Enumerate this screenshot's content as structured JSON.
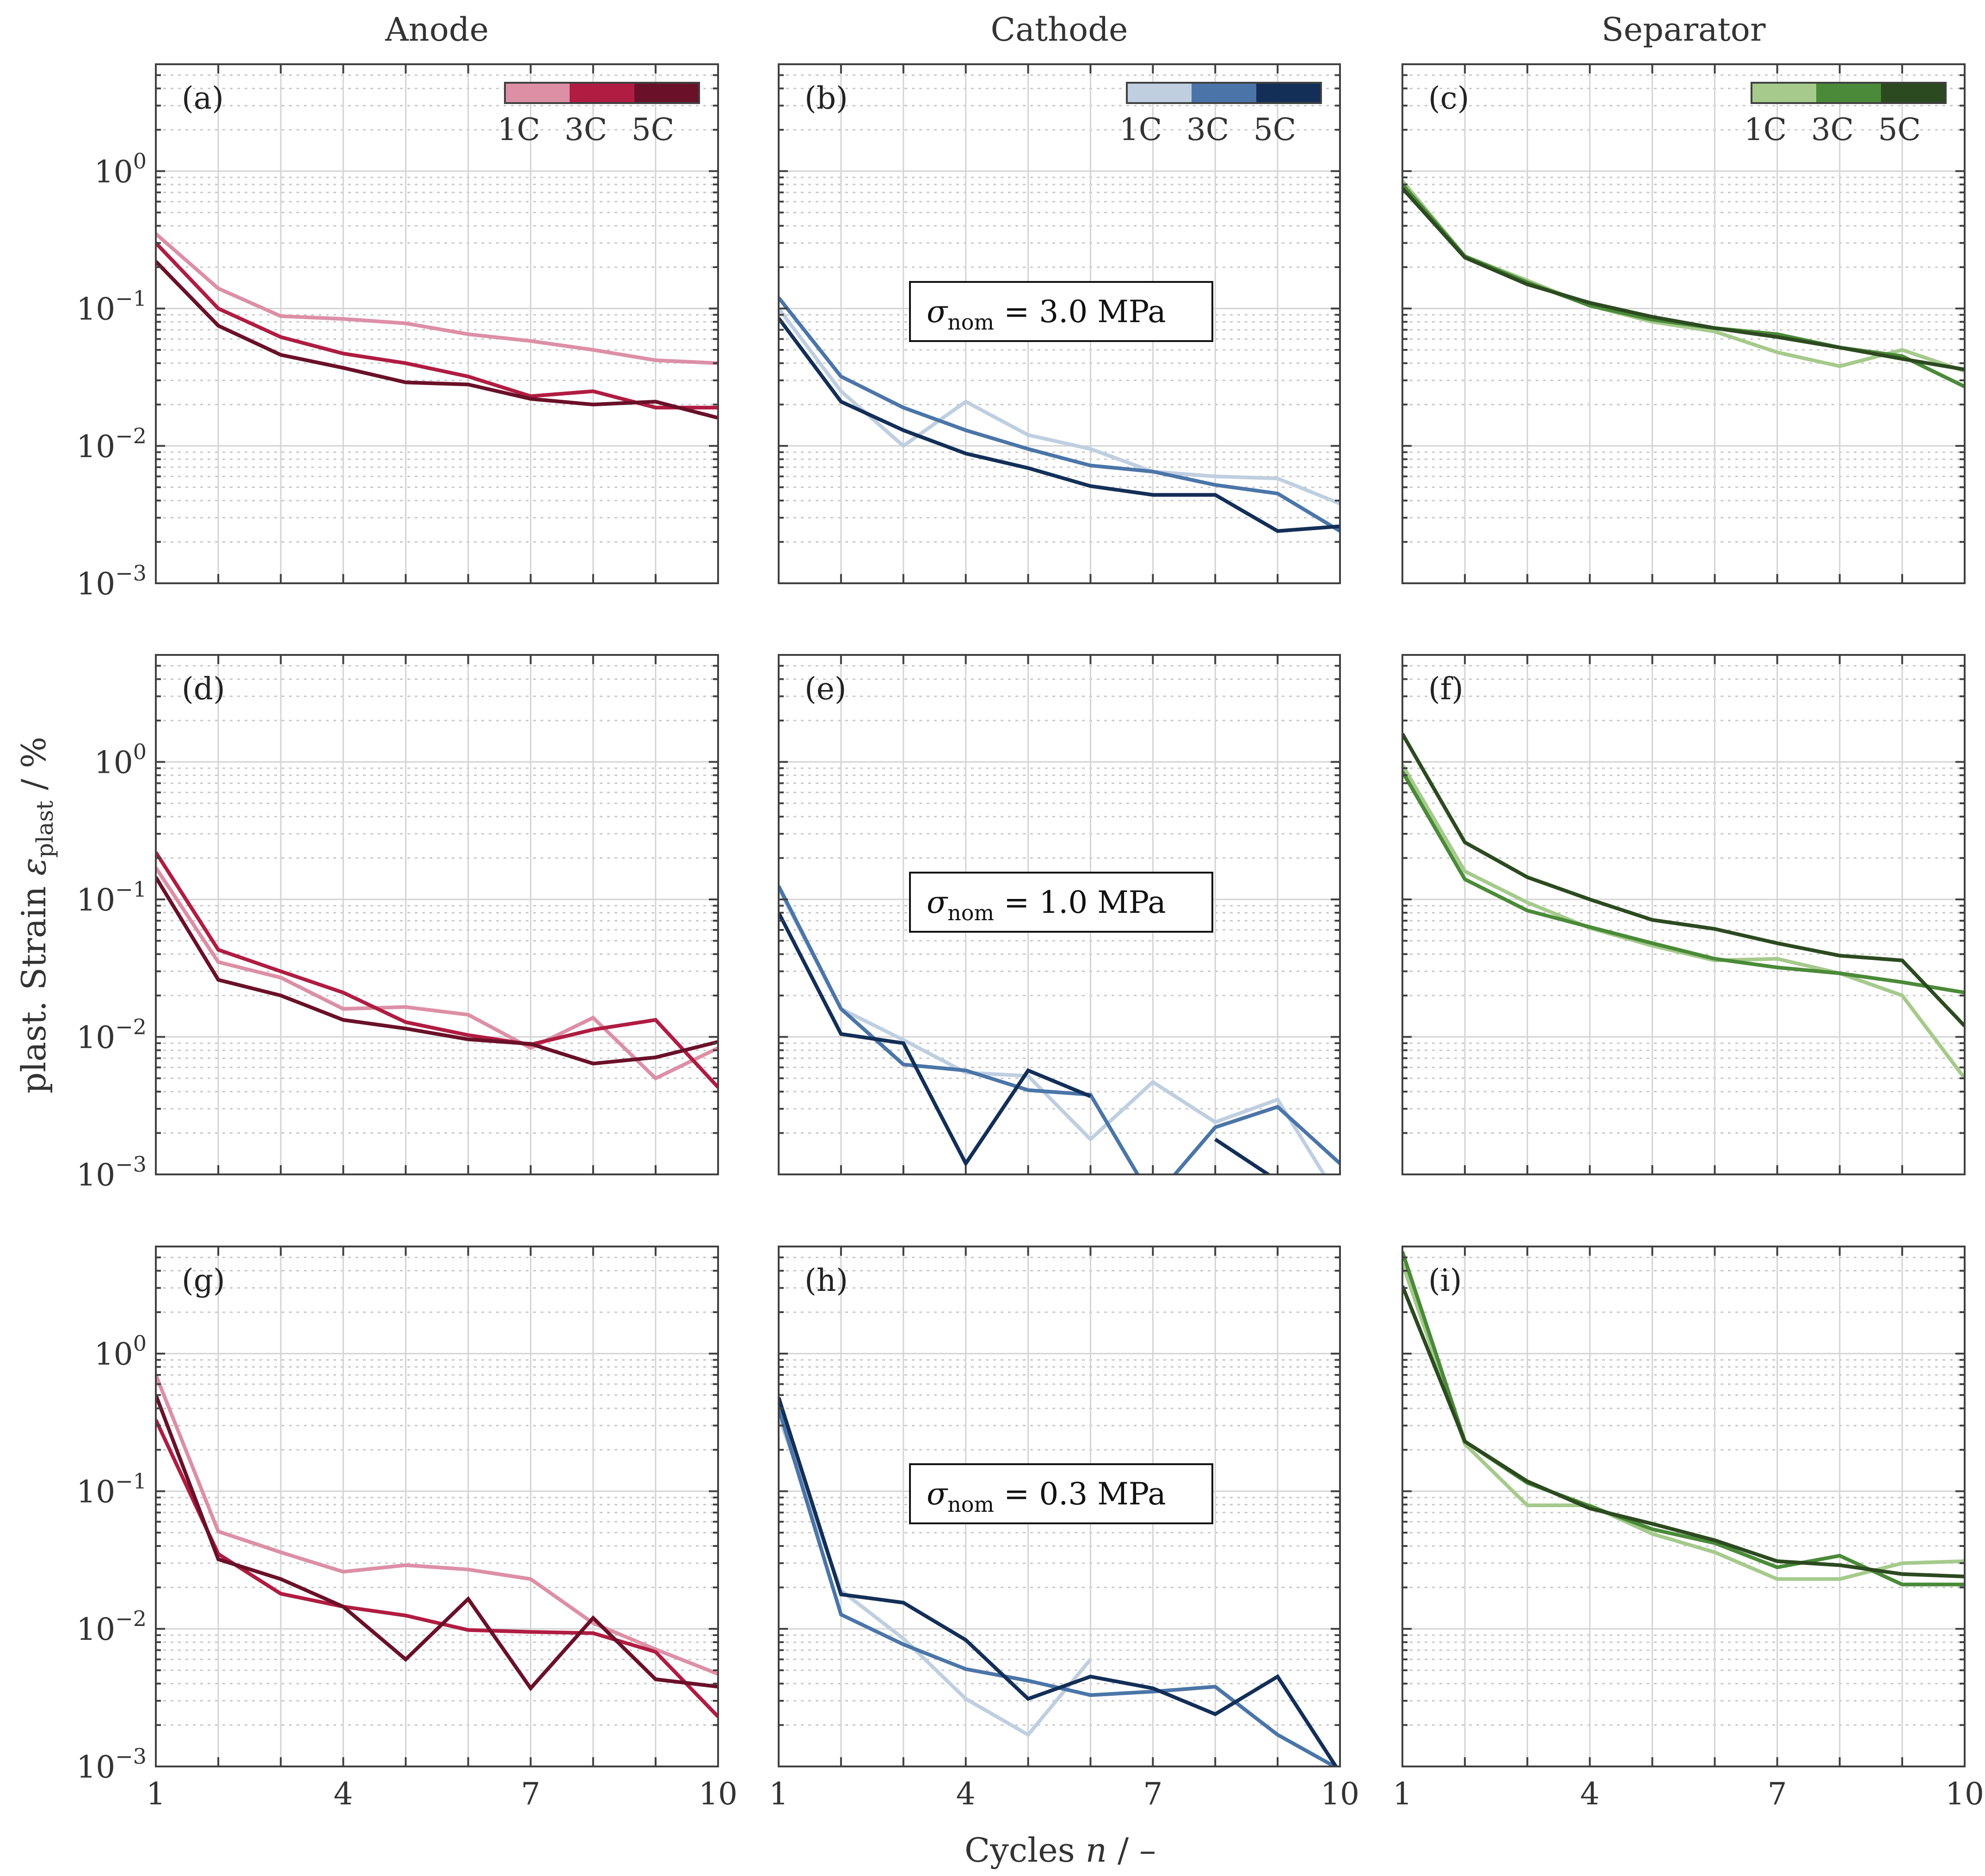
{
  "figure": {
    "column_titles": [
      "Anode",
      "Cathode",
      "Separator"
    ],
    "ylabel": "plast. Strain ε_plast / %",
    "ylabel_main": "plast. Strain ",
    "ylabel_eps": "ε",
    "ylabel_sub": "plast",
    "ylabel_tail": " / %",
    "xlabel": "Cycles n / –",
    "xlabel_main": "Cycles ",
    "xlabel_var": "n",
    "xlabel_tail": " / –",
    "yticks": [
      {
        "value": 0.001,
        "base": "10",
        "exp": "−3"
      },
      {
        "value": 0.01,
        "base": "10",
        "exp": "−2"
      },
      {
        "value": 0.1,
        "base": "10",
        "exp": "−1"
      },
      {
        "value": 1,
        "base": "10",
        "exp": "0"
      }
    ],
    "xticks": [
      1,
      4,
      7,
      10
    ],
    "colorbar_labels": [
      "1C",
      "3C",
      "5C"
    ],
    "stress_labels": [
      {
        "text": "σ_nom = 3.0 MPa",
        "sigma": "σ",
        "sub": "nom",
        "rest": " = 3.0 MPa"
      },
      {
        "text": "σ_nom = 1.0 MPa",
        "sigma": "σ",
        "sub": "nom",
        "rest": " = 1.0 MPa"
      },
      {
        "text": "σ_nom = 0.3 MPa",
        "sigma": "σ",
        "sub": "nom",
        "rest": " = 0.3 MPa"
      }
    ],
    "palettes": {
      "anode": [
        "#dc8fa5",
        "#b01c42",
        "#6a1029"
      ],
      "cathode": [
        "#bfcfe0",
        "#4b75a8",
        "#132f57"
      ],
      "separator": [
        "#a5ca8c",
        "#4a8a38",
        "#2c4a20"
      ]
    }
  },
  "chart_data": [
    {
      "panel": "(a)",
      "type": "line",
      "component": "Anode",
      "stress": "3.0 MPa",
      "yscale": "log",
      "ylim": [
        0.001,
        6
      ],
      "xlim": [
        1,
        10
      ],
      "x": [
        1,
        2,
        3,
        4,
        5,
        6,
        7,
        8,
        9,
        10
      ],
      "series": [
        {
          "name": "1C",
          "values": [
            0.35,
            0.14,
            0.088,
            0.084,
            0.078,
            0.065,
            0.058,
            0.05,
            0.042,
            0.04
          ]
        },
        {
          "name": "3C",
          "values": [
            0.3,
            0.1,
            0.062,
            0.047,
            0.04,
            0.032,
            0.023,
            0.025,
            0.019,
            0.019
          ]
        },
        {
          "name": "5C",
          "values": [
            0.22,
            0.075,
            0.046,
            0.037,
            0.029,
            0.028,
            0.022,
            0.02,
            0.021,
            0.016
          ]
        }
      ]
    },
    {
      "panel": "(b)",
      "type": "line",
      "component": "Cathode",
      "stress": "3.0 MPa",
      "yscale": "log",
      "ylim": [
        0.001,
        6
      ],
      "xlim": [
        1,
        10
      ],
      "x": [
        1,
        2,
        3,
        4,
        5,
        6,
        7,
        8,
        9,
        10
      ],
      "series": [
        {
          "name": "1C",
          "values": [
            0.1,
            0.025,
            0.01,
            0.021,
            0.012,
            0.0095,
            0.0065,
            0.006,
            0.0058,
            0.0038
          ]
        },
        {
          "name": "3C",
          "values": [
            0.12,
            0.032,
            0.019,
            0.013,
            0.0095,
            0.0072,
            0.0065,
            0.0052,
            0.0045,
            0.0024
          ]
        },
        {
          "name": "5C",
          "values": [
            0.085,
            0.021,
            0.013,
            0.0088,
            0.0069,
            0.0051,
            0.0044,
            0.0044,
            0.0024,
            0.0026
          ]
        }
      ]
    },
    {
      "panel": "(c)",
      "type": "line",
      "component": "Separator",
      "stress": "3.0 MPa",
      "yscale": "log",
      "ylim": [
        0.001,
        6
      ],
      "xlim": [
        1,
        10
      ],
      "x": [
        1,
        2,
        3,
        4,
        5,
        6,
        7,
        8,
        9,
        10
      ],
      "series": [
        {
          "name": "1C",
          "values": [
            0.85,
            0.24,
            0.16,
            0.105,
            0.08,
            0.068,
            0.048,
            0.038,
            0.05,
            0.035
          ]
        },
        {
          "name": "3C",
          "values": [
            0.8,
            0.24,
            0.155,
            0.105,
            0.083,
            0.072,
            0.065,
            0.052,
            0.045,
            0.027
          ]
        },
        {
          "name": "5C",
          "values": [
            0.75,
            0.235,
            0.15,
            0.11,
            0.087,
            0.072,
            0.062,
            0.052,
            0.043,
            0.036
          ]
        }
      ]
    },
    {
      "panel": "(d)",
      "type": "line",
      "component": "Anode",
      "stress": "1.0 MPa",
      "yscale": "log",
      "ylim": [
        0.001,
        6
      ],
      "xlim": [
        1,
        10
      ],
      "x": [
        1,
        2,
        3,
        4,
        5,
        6,
        7,
        8,
        9,
        10
      ],
      "series": [
        {
          "name": "1C",
          "values": [
            0.17,
            0.035,
            0.027,
            0.016,
            0.0165,
            0.0145,
            0.0083,
            0.0138,
            0.005,
            0.0083
          ]
        },
        {
          "name": "3C",
          "values": [
            0.22,
            0.043,
            0.03,
            0.021,
            0.0128,
            0.0103,
            0.0088,
            0.0113,
            0.0133,
            0.0043
          ]
        },
        {
          "name": "5C",
          "values": [
            0.145,
            0.026,
            0.02,
            0.0133,
            0.0115,
            0.0096,
            0.0089,
            0.0064,
            0.0071,
            0.0092
          ]
        }
      ]
    },
    {
      "panel": "(e)",
      "type": "line",
      "component": "Cathode",
      "stress": "1.0 MPa",
      "yscale": "log",
      "ylim": [
        0.001,
        6
      ],
      "xlim": [
        1,
        10
      ],
      "x": [
        1,
        2,
        3,
        4,
        5,
        6,
        7,
        8,
        9,
        10
      ],
      "series": [
        {
          "name": "1C",
          "values": [
            0.12,
            0.016,
            0.0095,
            0.0055,
            0.0052,
            0.0018,
            0.0047,
            0.0024,
            0.0035,
            0.00065
          ]
        },
        {
          "name": "3C",
          "values": [
            0.125,
            0.016,
            0.0063,
            0.0057,
            0.0041,
            0.0038,
            0.00065,
            0.0022,
            0.0031,
            0.0012
          ]
        },
        {
          "name": "5C",
          "values": [
            0.08,
            0.0105,
            0.009,
            0.0012,
            0.0057,
            0.0037,
            null,
            0.0018,
            0.0009,
            null
          ]
        }
      ]
    },
    {
      "panel": "(f)",
      "type": "line",
      "component": "Separator",
      "stress": "1.0 MPa",
      "yscale": "log",
      "ylim": [
        0.001,
        6
      ],
      "xlim": [
        1,
        10
      ],
      "x": [
        1,
        2,
        3,
        4,
        5,
        6,
        7,
        8,
        9,
        10
      ],
      "series": [
        {
          "name": "1C",
          "values": [
            0.95,
            0.16,
            0.095,
            0.062,
            0.046,
            0.036,
            0.037,
            0.029,
            0.02,
            0.005
          ]
        },
        {
          "name": "3C",
          "values": [
            0.85,
            0.14,
            0.083,
            0.063,
            0.048,
            0.037,
            0.032,
            0.029,
            0.025,
            0.021
          ]
        },
        {
          "name": "5C",
          "values": [
            1.6,
            0.26,
            0.145,
            0.1,
            0.071,
            0.061,
            0.048,
            0.039,
            0.036,
            0.012
          ]
        }
      ]
    },
    {
      "panel": "(g)",
      "type": "line",
      "component": "Anode",
      "stress": "0.3 MPa",
      "yscale": "log",
      "ylim": [
        0.001,
        6
      ],
      "xlim": [
        1,
        10
      ],
      "x": [
        1,
        2,
        3,
        4,
        5,
        6,
        7,
        8,
        9,
        10
      ],
      "series": [
        {
          "name": "1C",
          "values": [
            0.7,
            0.051,
            0.036,
            0.026,
            0.029,
            0.027,
            0.023,
            0.011,
            0.0071,
            0.0047
          ]
        },
        {
          "name": "3C",
          "values": [
            0.33,
            0.035,
            0.018,
            0.0145,
            0.0125,
            0.0098,
            0.0095,
            0.0093,
            0.0068,
            0.0023
          ]
        },
        {
          "name": "5C",
          "values": [
            0.5,
            0.032,
            0.023,
            0.0145,
            0.006,
            0.0165,
            0.0037,
            0.012,
            0.0043,
            0.0038
          ]
        }
      ]
    },
    {
      "panel": "(h)",
      "type": "line",
      "component": "Cathode",
      "stress": "0.3 MPa",
      "yscale": "log",
      "ylim": [
        0.001,
        6
      ],
      "xlim": [
        1,
        10
      ],
      "x": [
        1,
        2,
        3,
        4,
        5,
        6,
        7,
        8,
        9,
        10
      ],
      "series": [
        {
          "name": "1C",
          "values": [
            0.35,
            0.019,
            0.0085,
            0.0031,
            0.0017,
            0.006,
            null,
            null,
            null,
            null
          ]
        },
        {
          "name": "3C",
          "values": [
            0.4,
            0.0127,
            0.0077,
            0.0051,
            0.0042,
            0.0033,
            0.0035,
            0.0038,
            0.0017,
            0.00095
          ]
        },
        {
          "name": "5C",
          "values": [
            0.48,
            0.0178,
            0.0155,
            0.0083,
            0.0031,
            0.0045,
            0.0037,
            0.0024,
            0.0045,
            0.0009
          ]
        }
      ]
    },
    {
      "panel": "(i)",
      "type": "line",
      "component": "Separator",
      "stress": "0.3 MPa",
      "yscale": "log",
      "ylim": [
        0.001,
        6
      ],
      "xlim": [
        1,
        10
      ],
      "x": [
        1,
        2,
        3,
        4,
        5,
        6,
        7,
        8,
        9,
        10
      ],
      "series": [
        {
          "name": "1C",
          "values": [
            4.5,
            0.22,
            0.079,
            0.079,
            0.049,
            0.036,
            0.023,
            0.023,
            0.03,
            0.031
          ]
        },
        {
          "name": "3C",
          "values": [
            5.5,
            0.23,
            0.115,
            0.078,
            0.053,
            0.042,
            0.028,
            0.034,
            0.021,
            0.021
          ]
        },
        {
          "name": "5C",
          "values": [
            3.1,
            0.23,
            0.118,
            0.075,
            0.058,
            0.044,
            0.031,
            0.029,
            0.025,
            0.024
          ]
        }
      ]
    }
  ]
}
